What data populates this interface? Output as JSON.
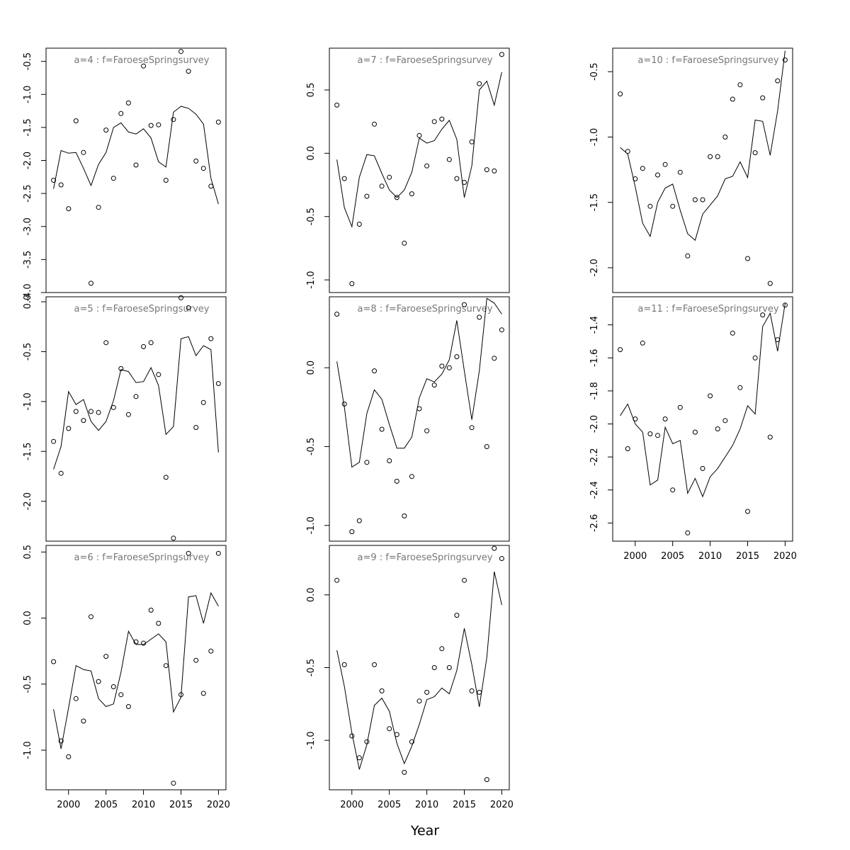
{
  "figure": {
    "xlabel": "Year",
    "x_ticks": [
      2000,
      2005,
      2010,
      2015,
      2020
    ]
  },
  "chart_data": [
    {
      "type": "scatter",
      "title": "a=4  :  f=FaroeseSpringsurvey",
      "xlim": [
        1997,
        2021
      ],
      "ylim": [
        -4.0,
        -0.3
      ],
      "y_ticks": [
        -4.0,
        -3.5,
        -3.0,
        -2.5,
        -2.0,
        -1.5,
        -1.0,
        -0.5
      ],
      "show_x_axis": false,
      "years": [
        1998,
        1999,
        2000,
        2001,
        2002,
        2003,
        2004,
        2005,
        2006,
        2007,
        2008,
        2009,
        2010,
        2011,
        2012,
        2013,
        2014,
        2015,
        2016,
        2017,
        2018,
        2019,
        2020
      ],
      "observed": [
        -2.3,
        -2.37,
        -2.73,
        -1.4,
        -1.88,
        -3.86,
        -2.71,
        -1.54,
        -2.27,
        -1.29,
        -1.13,
        -2.07,
        -0.57,
        -1.47,
        -1.46,
        -2.3,
        -1.38,
        -0.35,
        -0.65,
        -2.01,
        -2.12,
        -2.39,
        -1.42
      ],
      "fitted": [
        -2.43,
        -1.85,
        -1.89,
        -1.88,
        -2.12,
        -2.38,
        -2.06,
        -1.88,
        -1.5,
        -1.43,
        -1.57,
        -1.6,
        -1.52,
        -1.66,
        -2.02,
        -2.1,
        -1.27,
        -1.18,
        -1.21,
        -1.3,
        -1.45,
        -2.27,
        -2.66
      ]
    },
    {
      "type": "scatter",
      "title": "a=5  :  f=FaroeseSpringsurvey",
      "xlim": [
        1997,
        2021
      ],
      "ylim": [
        -2.4,
        0.05
      ],
      "y_ticks": [
        -2.0,
        -1.5,
        -1.0,
        -0.5,
        0.0
      ],
      "show_x_axis": false,
      "years": [
        1998,
        1999,
        2000,
        2001,
        2002,
        2003,
        2004,
        2005,
        2006,
        2007,
        2008,
        2009,
        2010,
        2011,
        2012,
        2013,
        2014,
        2015,
        2016,
        2017,
        2018,
        2019,
        2020
      ],
      "observed": [
        -1.4,
        -1.72,
        -1.27,
        -1.1,
        -1.19,
        -1.1,
        -1.11,
        -0.41,
        -1.06,
        -0.67,
        -1.13,
        -0.95,
        -0.45,
        -0.41,
        -0.73,
        -1.76,
        -2.37,
        0.04,
        -0.06,
        -1.26,
        -1.01,
        -0.37,
        -0.82
      ],
      "fitted": [
        -1.68,
        -1.45,
        -0.9,
        -1.03,
        -0.98,
        -1.2,
        -1.29,
        -1.2,
        -0.99,
        -0.68,
        -0.7,
        -0.81,
        -0.8,
        -0.66,
        -0.84,
        -1.33,
        -1.25,
        -0.37,
        -0.35,
        -0.54,
        -0.44,
        -0.48,
        -1.51
      ]
    },
    {
      "type": "scatter",
      "title": "a=6  :  f=FaroeseSpringsurvey",
      "xlim": [
        1997,
        2021
      ],
      "ylim": [
        -1.3,
        0.55
      ],
      "y_ticks": [
        -1.0,
        -0.5,
        0.0,
        0.5
      ],
      "show_x_axis": true,
      "years": [
        1998,
        1999,
        2000,
        2001,
        2002,
        2003,
        2004,
        2005,
        2006,
        2007,
        2008,
        2009,
        2010,
        2011,
        2012,
        2013,
        2014,
        2015,
        2016,
        2017,
        2018,
        2019,
        2020
      ],
      "observed": [
        -0.33,
        -0.93,
        -1.05,
        -0.61,
        -0.78,
        0.01,
        -0.48,
        -0.29,
        -0.52,
        -0.58,
        -0.67,
        -0.18,
        -0.19,
        0.06,
        -0.04,
        -0.36,
        -1.25,
        -0.58,
        0.49,
        -0.32,
        -0.57,
        -0.25,
        0.49
      ],
      "fitted": [
        -0.69,
        -0.99,
        -0.68,
        -0.36,
        -0.39,
        -0.4,
        -0.61,
        -0.67,
        -0.65,
        -0.41,
        -0.1,
        -0.2,
        -0.2,
        -0.16,
        -0.12,
        -0.18,
        -0.71,
        -0.6,
        0.16,
        0.17,
        -0.04,
        0.19,
        0.09
      ]
    },
    {
      "type": "scatter",
      "title": "a=7  :  f=FaroeseSpringsurvey",
      "xlim": [
        1997,
        2021
      ],
      "ylim": [
        -1.1,
        0.83
      ],
      "y_ticks": [
        -1.0,
        -0.5,
        0.0,
        0.5
      ],
      "show_x_axis": false,
      "years": [
        1998,
        1999,
        2000,
        2001,
        2002,
        2003,
        2004,
        2005,
        2006,
        2007,
        2008,
        2009,
        2010,
        2011,
        2012,
        2013,
        2014,
        2015,
        2016,
        2017,
        2018,
        2019,
        2020
      ],
      "observed": [
        0.38,
        -0.2,
        -1.03,
        -0.56,
        -0.34,
        0.23,
        -0.26,
        -0.19,
        -0.35,
        -0.71,
        -0.32,
        0.14,
        -0.1,
        0.25,
        0.27,
        -0.05,
        -0.2,
        -0.23,
        0.09,
        0.55,
        -0.13,
        -0.14,
        0.78
      ],
      "fitted": [
        -0.05,
        -0.43,
        -0.58,
        -0.19,
        -0.01,
        -0.02,
        -0.16,
        -0.29,
        -0.35,
        -0.29,
        -0.15,
        0.12,
        0.08,
        0.1,
        0.19,
        0.26,
        0.11,
        -0.35,
        -0.1,
        0.5,
        0.57,
        0.38,
        0.64
      ]
    },
    {
      "type": "scatter",
      "title": "a=8  :  f=FaroeseSpringsurvey",
      "xlim": [
        1997,
        2021
      ],
      "ylim": [
        -1.1,
        0.45
      ],
      "y_ticks": [
        -1.0,
        -0.5,
        0.0
      ],
      "show_x_axis": false,
      "years": [
        1998,
        1999,
        2000,
        2001,
        2002,
        2003,
        2004,
        2005,
        2006,
        2007,
        2008,
        2009,
        2010,
        2011,
        2012,
        2013,
        2014,
        2015,
        2016,
        2017,
        2018,
        2019,
        2020
      ],
      "observed": [
        0.34,
        -0.23,
        -1.04,
        -0.97,
        -0.6,
        -0.02,
        -0.39,
        -0.59,
        -0.72,
        -0.94,
        -0.69,
        -0.26,
        -0.4,
        -0.11,
        0.01,
        0,
        0.07,
        0.4,
        -0.38,
        0.32,
        -0.5,
        0.06,
        0.24
      ],
      "fitted": [
        0.04,
        -0.25,
        -0.63,
        -0.6,
        -0.29,
        -0.14,
        -0.2,
        -0.36,
        -0.51,
        -0.51,
        -0.44,
        -0.19,
        -0.07,
        -0.09,
        -0.04,
        0.05,
        0.3,
        -0.02,
        -0.33,
        -0.02,
        0.44,
        0.41,
        0.34
      ]
    },
    {
      "type": "scatter",
      "title": "a=9  :  f=FaroeseSpringsurvey",
      "xlim": [
        1997,
        2021
      ],
      "ylim": [
        -1.34,
        0.34
      ],
      "y_ticks": [
        -1.0,
        -0.5,
        0.0
      ],
      "show_x_axis": true,
      "years": [
        1998,
        1999,
        2000,
        2001,
        2002,
        2003,
        2004,
        2005,
        2006,
        2007,
        2008,
        2009,
        2010,
        2011,
        2012,
        2013,
        2014,
        2015,
        2016,
        2017,
        2018,
        2019,
        2020
      ],
      "observed": [
        0.1,
        -0.48,
        -0.97,
        -1.12,
        -1.01,
        -0.48,
        -0.66,
        -0.92,
        -0.96,
        -1.22,
        -1.01,
        -0.73,
        -0.67,
        -0.5,
        -0.37,
        -0.5,
        -0.14,
        0.1,
        -0.66,
        -0.67,
        -1.27,
        0.32,
        0.25
      ],
      "fitted": [
        -0.38,
        -0.63,
        -0.95,
        -1.2,
        -1.03,
        -0.76,
        -0.71,
        -0.8,
        -1.02,
        -1.16,
        -1.04,
        -0.89,
        -0.72,
        -0.7,
        -0.64,
        -0.68,
        -0.52,
        -0.23,
        -0.48,
        -0.77,
        -0.43,
        0.16,
        -0.07
      ]
    },
    {
      "type": "scatter",
      "title": "a=10  :  f=FaroeseSpringsurvey",
      "xlim": [
        1997,
        2021
      ],
      "ylim": [
        -2.19,
        -0.32
      ],
      "y_ticks": [
        -2.0,
        -1.5,
        -1.0,
        -0.5
      ],
      "show_x_axis": false,
      "years": [
        1998,
        1999,
        2000,
        2001,
        2002,
        2003,
        2004,
        2005,
        2006,
        2007,
        2008,
        2009,
        2010,
        2011,
        2012,
        2013,
        2014,
        2015,
        2016,
        2017,
        2018,
        2019,
        2020
      ],
      "observed": [
        -0.67,
        -1.11,
        -1.32,
        -1.24,
        -1.53,
        -1.29,
        -1.21,
        -1.53,
        -1.27,
        -1.91,
        -1.48,
        -1.48,
        -1.15,
        -1.15,
        -1.0,
        -0.71,
        -0.6,
        -1.93,
        -1.12,
        -0.7,
        -2.12,
        -0.57,
        -0.41
      ],
      "fitted": [
        -1.08,
        -1.13,
        -1.38,
        -1.66,
        -1.76,
        -1.5,
        -1.39,
        -1.36,
        -1.56,
        -1.74,
        -1.79,
        -1.59,
        -1.52,
        -1.45,
        -1.32,
        -1.3,
        -1.19,
        -1.31,
        -0.87,
        -0.88,
        -1.14,
        -0.8,
        -0.34
      ]
    },
    {
      "type": "scatter",
      "title": "a=11  :  f=FaroeseSpringsurvey",
      "xlim": [
        1997,
        2021
      ],
      "ylim": [
        -2.71,
        -1.23
      ],
      "y_ticks": [
        -2.6,
        -2.4,
        -2.2,
        -2.0,
        -1.8,
        -1.6,
        -1.4
      ],
      "show_x_axis": true,
      "years": [
        1998,
        1999,
        2000,
        2001,
        2002,
        2003,
        2004,
        2005,
        2006,
        2007,
        2008,
        2009,
        2010,
        2011,
        2012,
        2013,
        2014,
        2015,
        2016,
        2017,
        2018,
        2019,
        2020
      ],
      "observed": [
        -1.55,
        -2.15,
        -1.97,
        -1.51,
        -2.06,
        -2.07,
        -1.97,
        -2.4,
        -1.9,
        -2.66,
        -2.05,
        -2.27,
        -1.83,
        -2.03,
        -1.98,
        -1.45,
        -1.78,
        -2.53,
        -1.6,
        -1.34,
        -2.08,
        -1.49,
        -1.28
      ],
      "fitted": [
        -1.95,
        -1.88,
        -2.0,
        -2.05,
        -2.37,
        -2.34,
        -2.02,
        -2.12,
        -2.1,
        -2.42,
        -2.33,
        -2.44,
        -2.32,
        -2.27,
        -2.2,
        -2.13,
        -2.03,
        -1.89,
        -1.94,
        -1.41,
        -1.33,
        -1.56,
        -1.27
      ]
    }
  ]
}
